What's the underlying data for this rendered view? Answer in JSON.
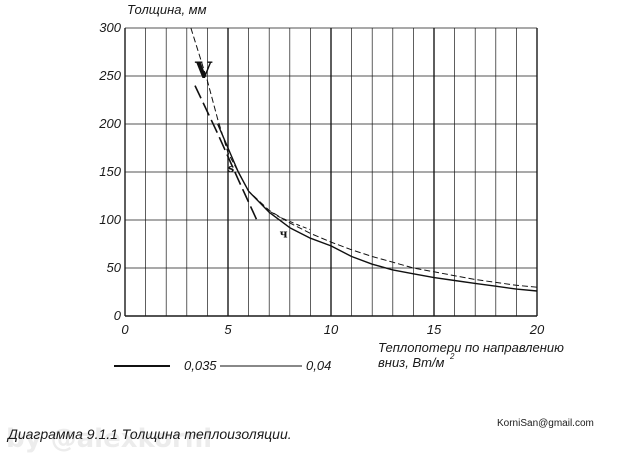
{
  "chart_data": {
    "type": "line",
    "xlabel_line1": "Теплопотери по направлению",
    "xlabel_line2": "вниз, Вт/м",
    "xlabel_sup": "2",
    "ylabel": "Толщина, мм",
    "xlim": [
      0,
      20
    ],
    "ylim": [
      0,
      300
    ],
    "x_ticks": [
      0,
      5,
      10,
      15,
      20
    ],
    "y_ticks": [
      0,
      50,
      100,
      150,
      200,
      250,
      300
    ],
    "grid": true,
    "series": [
      {
        "name": "0,035",
        "style": "solid",
        "x": [
          4.5,
          5.0,
          5.5,
          6.0,
          7.0,
          8.0,
          9.0,
          10.0,
          11.0,
          12.0,
          13.0,
          14.0,
          15.0,
          16.0,
          17.0,
          18.0,
          19.0,
          20.0
        ],
        "y": [
          200,
          175,
          150,
          130,
          108,
          92,
          81,
          73,
          62,
          54,
          48,
          44,
          40,
          37,
          34,
          31,
          28,
          26
        ]
      },
      {
        "name": "0,04",
        "style": "dashed",
        "x": [
          3.2,
          4.0,
          4.5,
          5.0,
          5.5,
          6.0,
          7.0,
          8.0,
          9.0,
          10.0,
          11.0,
          12.0,
          13.0,
          14.0,
          15.0,
          16.0,
          17.0,
          18.0,
          19.0,
          20.0
        ],
        "y": [
          300,
          245,
          205,
          170,
          150,
          130,
          110,
          97,
          86,
          77,
          69,
          62,
          56,
          50,
          46,
          42,
          38,
          35,
          32,
          30
        ]
      },
      {
        "name": "",
        "style": "long-dash",
        "x": [
          3.4,
          4.5,
          5.5,
          6.4
        ],
        "y": [
          240,
          190,
          142,
          100
        ]
      },
      {
        "name": "",
        "style": "short-dash",
        "x": [
          6.8,
          7.5,
          8.5,
          9.0
        ],
        "y": [
          112,
          103,
          94,
          90
        ]
      }
    ],
    "annotations": [
      {
        "text": "V",
        "x": 3.4,
        "y": 248
      },
      {
        "text": "s",
        "x": 5.0,
        "y": 150
      },
      {
        "text": "ч",
        "x": 7.5,
        "y": 82
      }
    ]
  },
  "legend": {
    "item1": "0,035",
    "item2": "0,04"
  },
  "caption": "Диаграмма 9.1.1 Толщина теплоизоляции.",
  "email": "KorniSan@gmail.com",
  "watermark": "by @alexkorni",
  "colors": {
    "line": "#111111",
    "grid": "#1a1a1a"
  }
}
